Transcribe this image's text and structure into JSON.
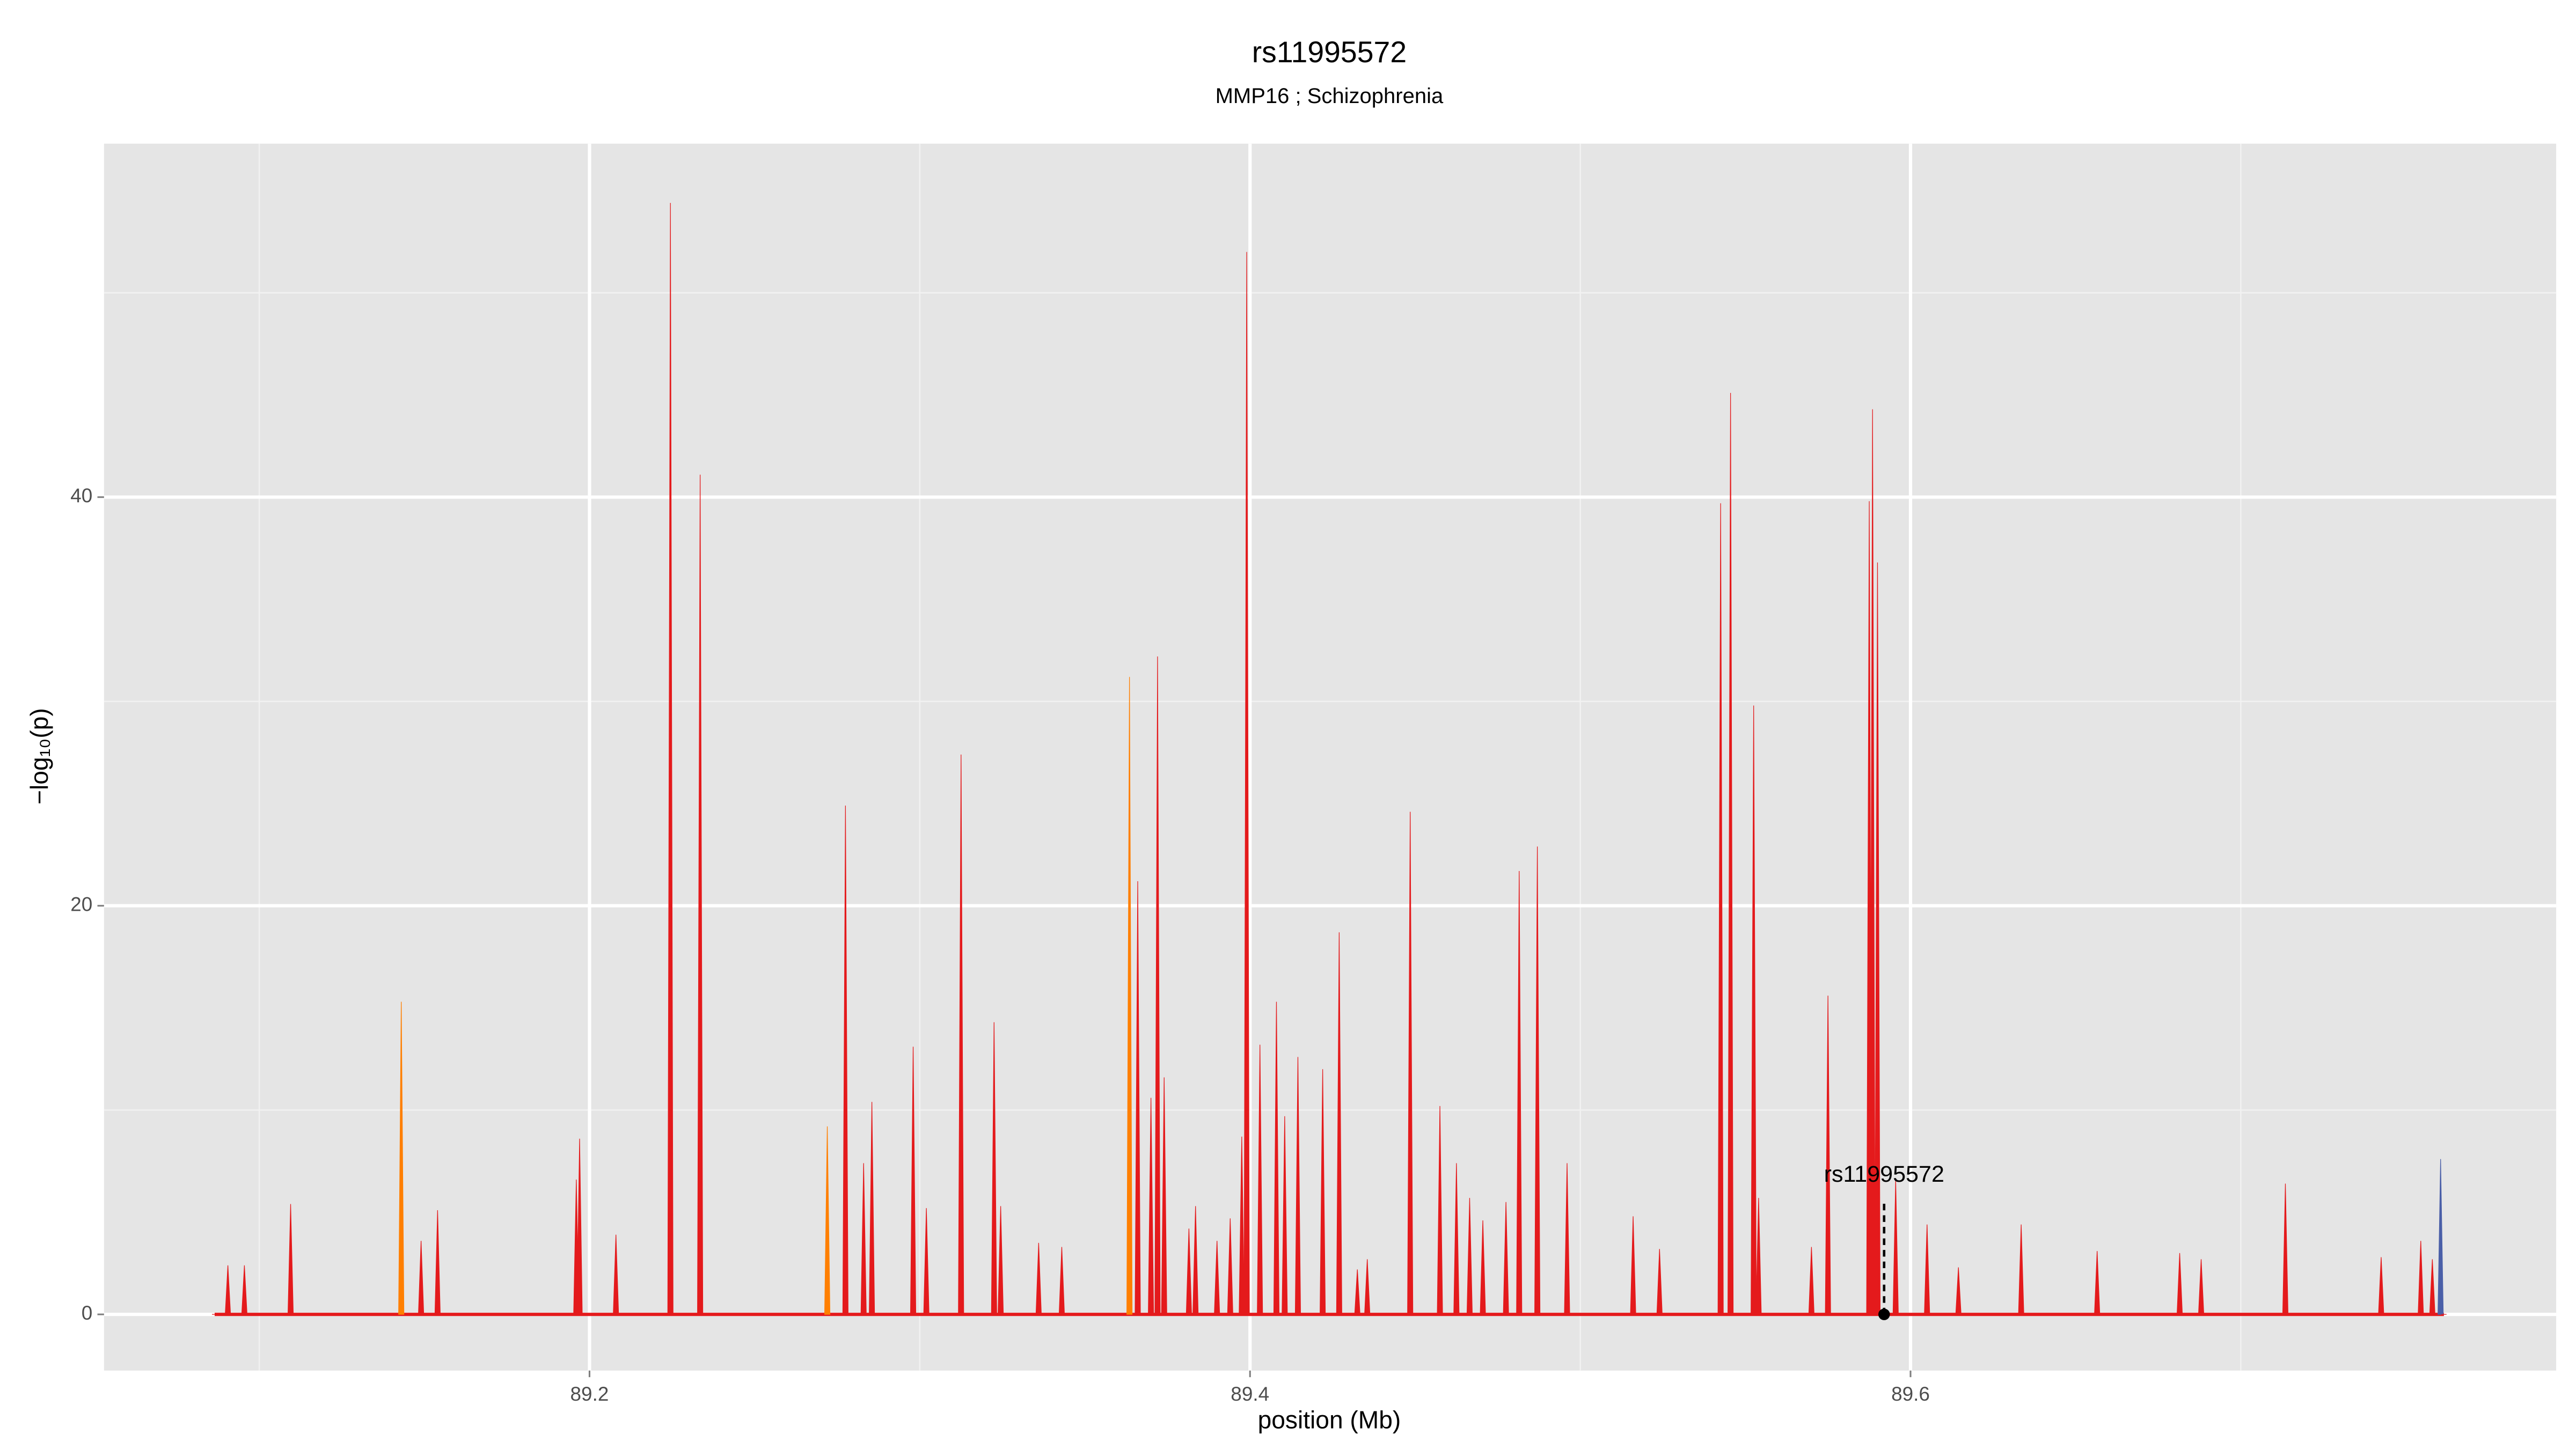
{
  "chart_data": {
    "type": "spike",
    "title": "rs11995572",
    "subtitle": "MMP16 ; Schizophrenia",
    "xlabel": "position (Mb)",
    "ylabel": "−log₁₀(p)",
    "xlim": [
      89.053,
      89.7955
    ],
    "ylim": [
      -2.75,
      57.3
    ],
    "xticks": [
      89.2,
      89.4,
      89.6
    ],
    "yticks": [
      0,
      20,
      40
    ],
    "xminorticks": [
      89.1,
      89.3,
      89.5,
      89.7
    ],
    "yminorticks": [
      10,
      30,
      50
    ],
    "grid": true,
    "x": [
      89.0865,
      89.0905,
      89.0955,
      89.1095,
      89.143,
      89.149,
      89.154,
      89.196,
      89.197,
      89.208,
      89.2245,
      89.2335,
      89.272,
      89.2775,
      89.283,
      89.2855,
      89.298,
      89.302,
      89.3125,
      89.3225,
      89.3245,
      89.336,
      89.343,
      89.3635,
      89.366,
      89.37,
      89.372,
      89.374,
      89.3815,
      89.3835,
      89.39,
      89.394,
      89.3975,
      89.399,
      89.403,
      89.408,
      89.4105,
      89.4145,
      89.422,
      89.427,
      89.4325,
      89.4355,
      89.4485,
      89.4575,
      89.4625,
      89.4665,
      89.4705,
      89.4775,
      89.4815,
      89.487,
      89.496,
      89.516,
      89.524,
      89.5425,
      89.5455,
      89.5525,
      89.554,
      89.57,
      89.575,
      89.5875,
      89.5885,
      89.59,
      89.5955,
      89.605,
      89.6145,
      89.6335,
      89.6565,
      89.6815,
      89.688,
      89.7135,
      89.7425,
      89.7545,
      89.758,
      89.7605,
      89.7615
    ],
    "values": [
      0,
      2.4,
      2.4,
      5.4,
      15.3,
      3.6,
      5.1,
      6.6,
      8.6,
      3.9,
      54.4,
      41.1,
      9.2,
      24.9,
      7.4,
      10.4,
      13.1,
      5.2,
      27.4,
      14.3,
      5.3,
      3.5,
      3.3,
      31.2,
      21.2,
      10.6,
      32.2,
      11.6,
      4.2,
      5.3,
      3.6,
      4.7,
      8.7,
      52.0,
      13.2,
      15.3,
      9.7,
      12.6,
      12.0,
      18.7,
      2.2,
      2.7,
      24.6,
      10.2,
      7.4,
      5.7,
      4.6,
      5.5,
      21.7,
      22.9,
      7.4,
      4.8,
      3.2,
      39.7,
      45.1,
      29.8,
      5.7,
      3.3,
      15.6,
      39.8,
      44.3,
      36.8,
      6.6,
      4.4,
      2.3,
      4.4,
      3.1,
      3.0,
      2.7,
      6.4,
      2.8,
      3.6,
      2.7,
      7.6,
      0
    ],
    "colors": [
      "#e41a1c",
      "#e41a1c",
      "#e41a1c",
      "#e41a1c",
      "#ff7f00",
      "#e41a1c",
      "#e41a1c",
      "#e41a1c",
      "#e41a1c",
      "#e41a1c",
      "#e41a1c",
      "#e41a1c",
      "#ff7f00",
      "#e41a1c",
      "#e41a1c",
      "#e41a1c",
      "#e41a1c",
      "#e41a1c",
      "#e41a1c",
      "#e41a1c",
      "#e41a1c",
      "#e41a1c",
      "#e41a1c",
      "#ff7f00",
      "#e41a1c",
      "#e41a1c",
      "#e41a1c",
      "#e41a1c",
      "#e41a1c",
      "#e41a1c",
      "#e41a1c",
      "#e41a1c",
      "#e41a1c",
      "#e41a1c",
      "#e41a1c",
      "#e41a1c",
      "#e41a1c",
      "#e41a1c",
      "#e41a1c",
      "#e41a1c",
      "#e41a1c",
      "#e41a1c",
      "#e41a1c",
      "#e41a1c",
      "#e41a1c",
      "#e41a1c",
      "#e41a1c",
      "#e41a1c",
      "#e41a1c",
      "#e41a1c",
      "#e41a1c",
      "#e41a1c",
      "#e41a1c",
      "#e41a1c",
      "#e41a1c",
      "#e41a1c",
      "#e41a1c",
      "#e41a1c",
      "#e41a1c",
      "#e41a1c",
      "#e41a1c",
      "#e41a1c",
      "#e41a1c",
      "#e41a1c",
      "#e41a1c",
      "#e41a1c",
      "#e41a1c",
      "#e41a1c",
      "#e41a1c",
      "#e41a1c",
      "#e41a1c",
      "#e41a1c",
      "#e41a1c",
      "#4a5fa8",
      "#e41a1c"
    ],
    "annotation": {
      "text": "rs11995572",
      "x": 89.592,
      "y": 0
    }
  }
}
